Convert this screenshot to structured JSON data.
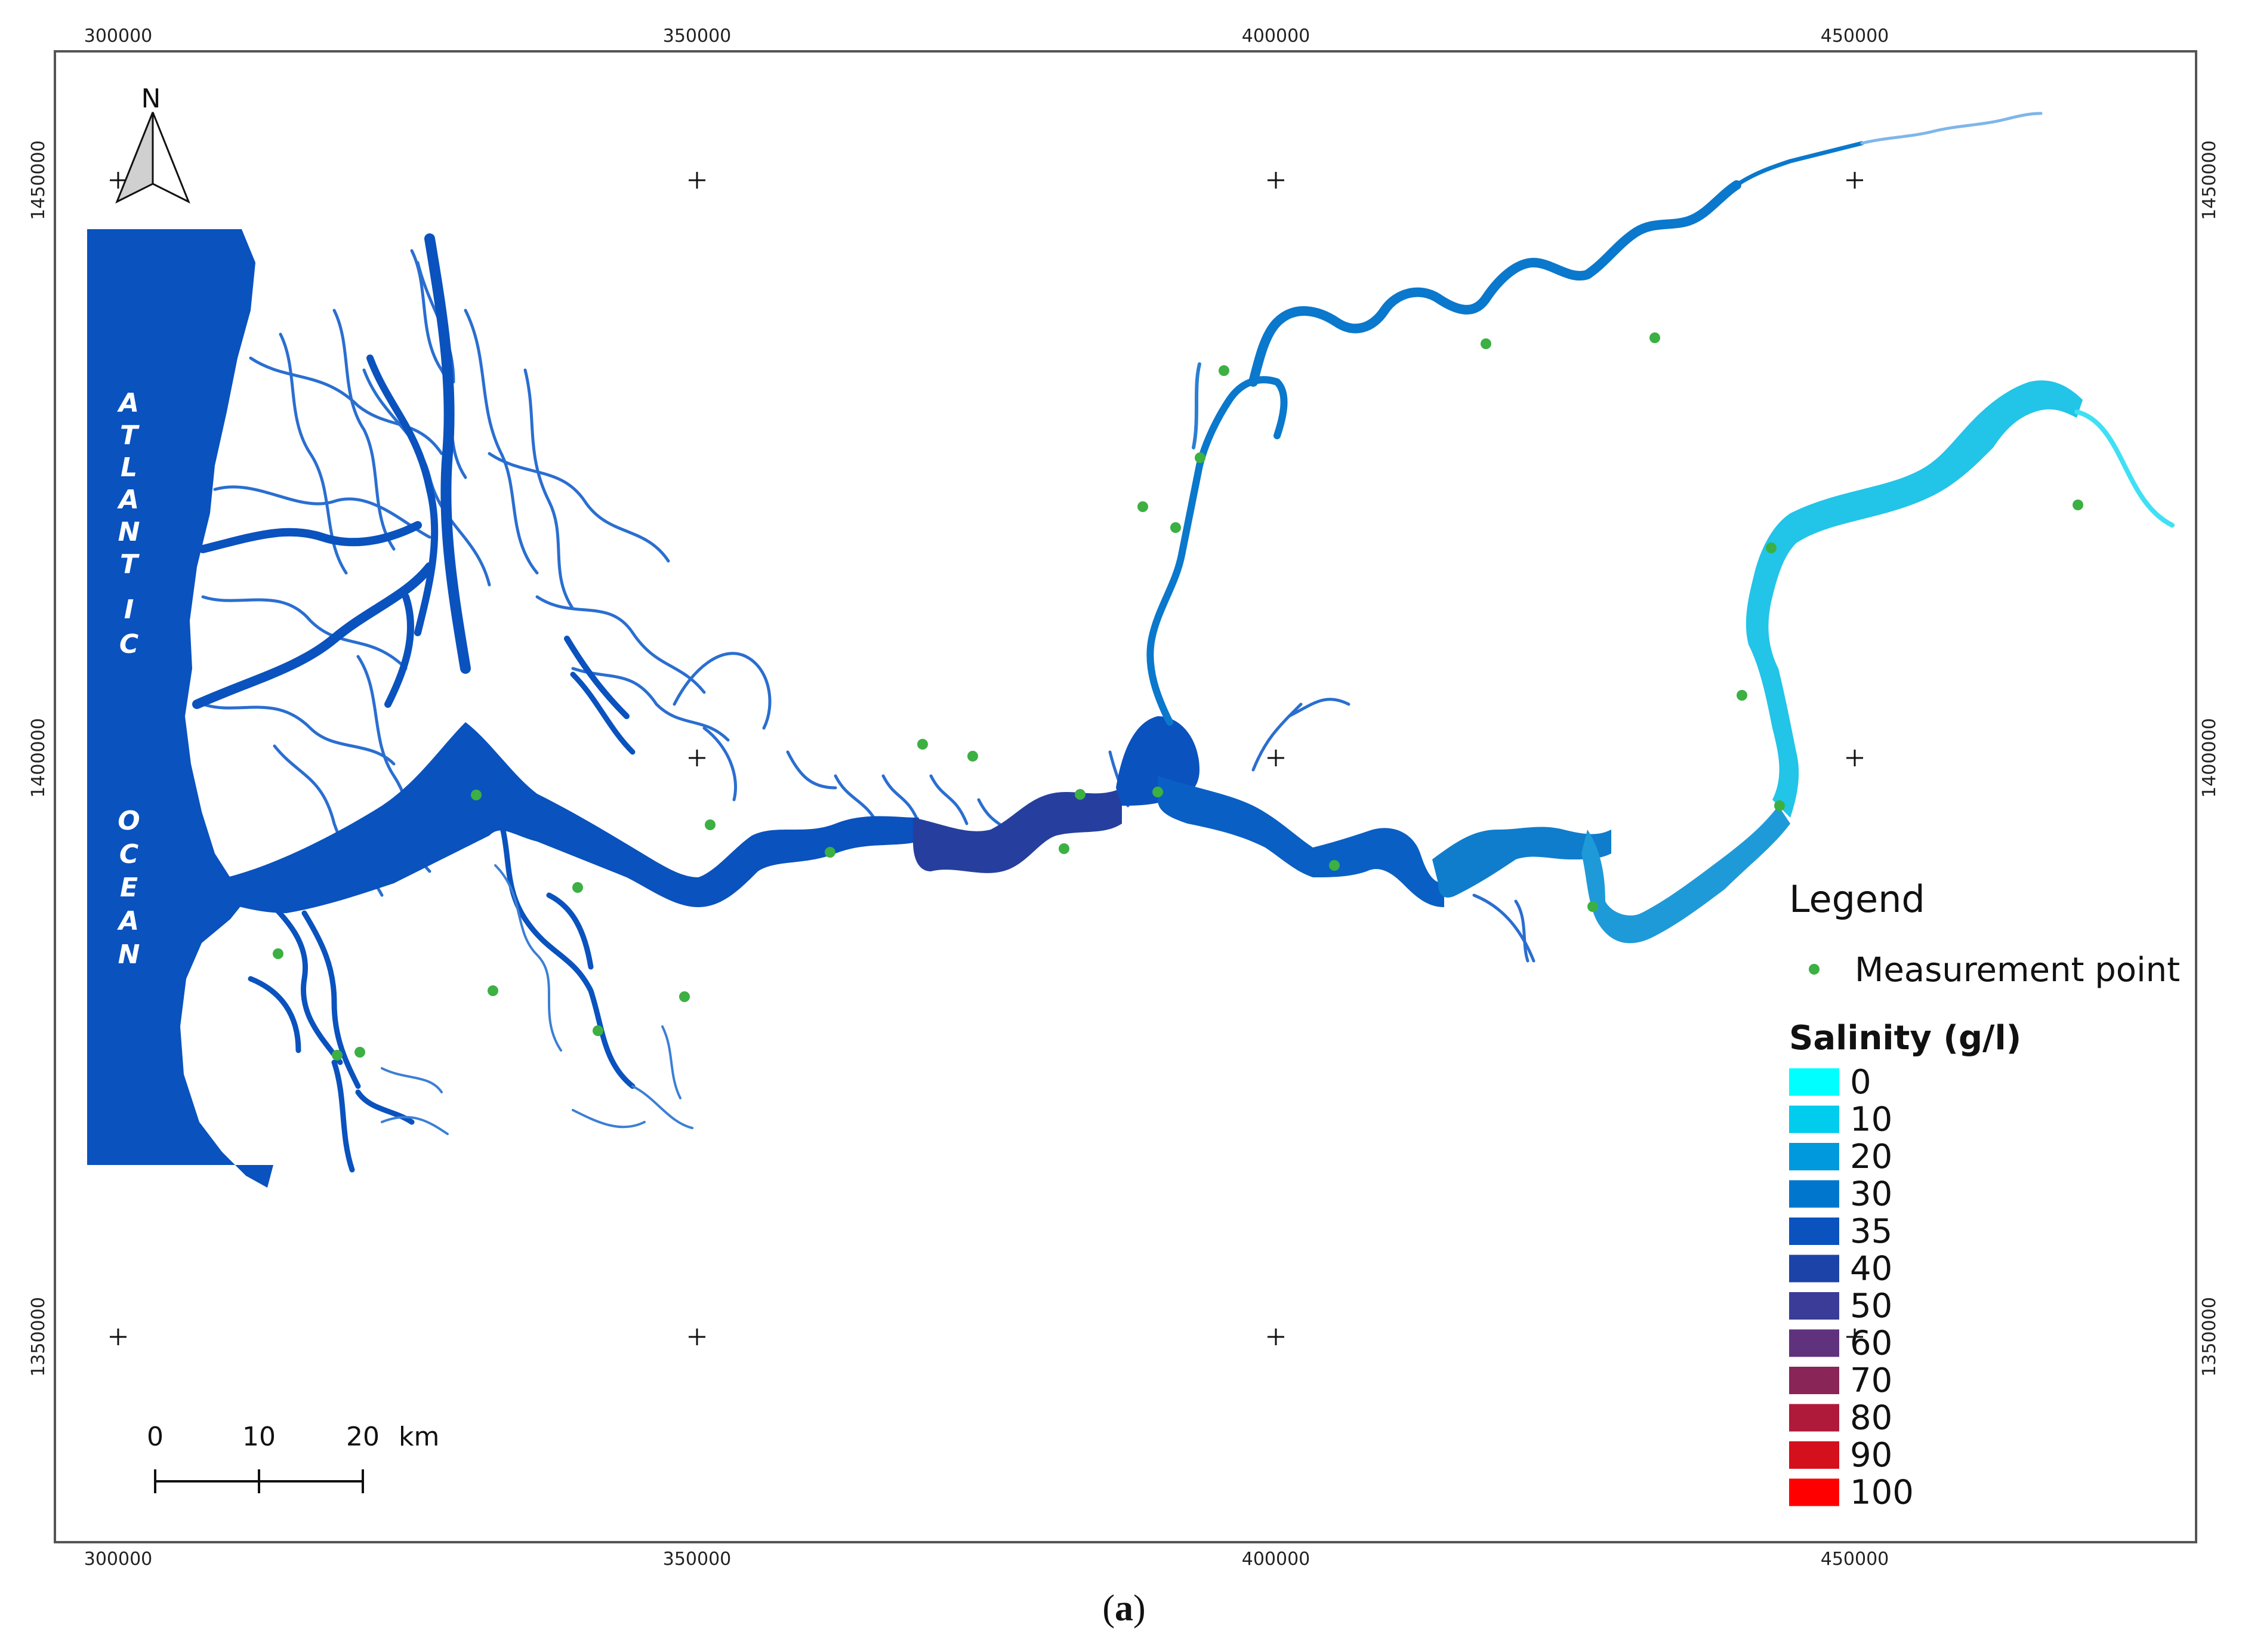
{
  "axes": {
    "x_ticks": [
      "300000",
      "350000",
      "400000",
      "450000"
    ],
    "y_ticks": [
      "1450000",
      "1400000",
      "1350000"
    ]
  },
  "north_arrow": {
    "label": "N",
    "icon": "north-arrow-icon"
  },
  "ocean_label_top": [
    "A",
    "T",
    "L",
    "A",
    "N",
    "T",
    "I",
    "C"
  ],
  "ocean_label_bottom": [
    "O",
    "C",
    "E",
    "A",
    "N"
  ],
  "legend": {
    "title": "Legend",
    "point_label": "Measurement point",
    "point_color": "#3cb043",
    "salinity_title": "Salinity (g/l)",
    "classes": [
      {
        "label": "0",
        "color": "#00ffff"
      },
      {
        "label": "10",
        "color": "#00ccee"
      },
      {
        "label": "20",
        "color": "#0099dd"
      },
      {
        "label": "30",
        "color": "#0077cc"
      },
      {
        "label": "35",
        "color": "#0a52be"
      },
      {
        "label": "40",
        "color": "#1c44a8"
      },
      {
        "label": "50",
        "color": "#3a3c98"
      },
      {
        "label": "60",
        "color": "#60327e"
      },
      {
        "label": "70",
        "color": "#8a2558"
      },
      {
        "label": "80",
        "color": "#b01a3a"
      },
      {
        "label": "90",
        "color": "#d4101c"
      },
      {
        "label": "100",
        "color": "#ff0000"
      }
    ]
  },
  "scale_bar": {
    "labels": [
      "0",
      "10",
      "20"
    ],
    "unit": "km"
  },
  "caption": {
    "open": "(",
    "letter": "a",
    "close": ")"
  },
  "colors": {
    "ocean": "#0a52be",
    "main_river": "#0a52be",
    "upper_river": "#0a78cc",
    "cyan_reach": "#22c4e8"
  }
}
